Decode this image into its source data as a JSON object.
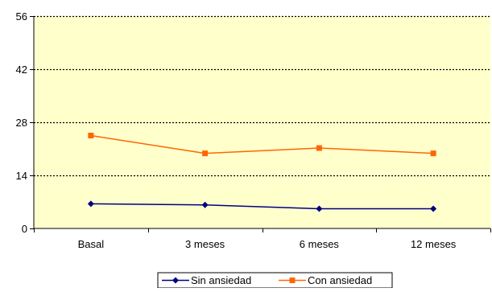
{
  "chart_data": {
    "type": "line",
    "categories": [
      "Basal",
      "3 meses",
      "6 meses",
      "12 meses"
    ],
    "series": [
      {
        "name": "Sin ansiedad",
        "values": [
          6.5,
          6.2,
          5.2,
          5.2
        ],
        "color": "#000080",
        "marker": "diamond"
      },
      {
        "name": "Con ansiedad",
        "values": [
          24.5,
          19.8,
          21.2,
          19.8
        ],
        "color": "#FF6600",
        "marker": "square"
      }
    ],
    "y_ticks": [
      "0",
      "14",
      "28",
      "42",
      "56"
    ],
    "ylim": [
      0,
      56
    ],
    "grid": "horizontal dotted",
    "plot_background": "#FFFFCC",
    "legend_position": "bottom-center",
    "title": "",
    "xlabel": "",
    "ylabel": ""
  }
}
